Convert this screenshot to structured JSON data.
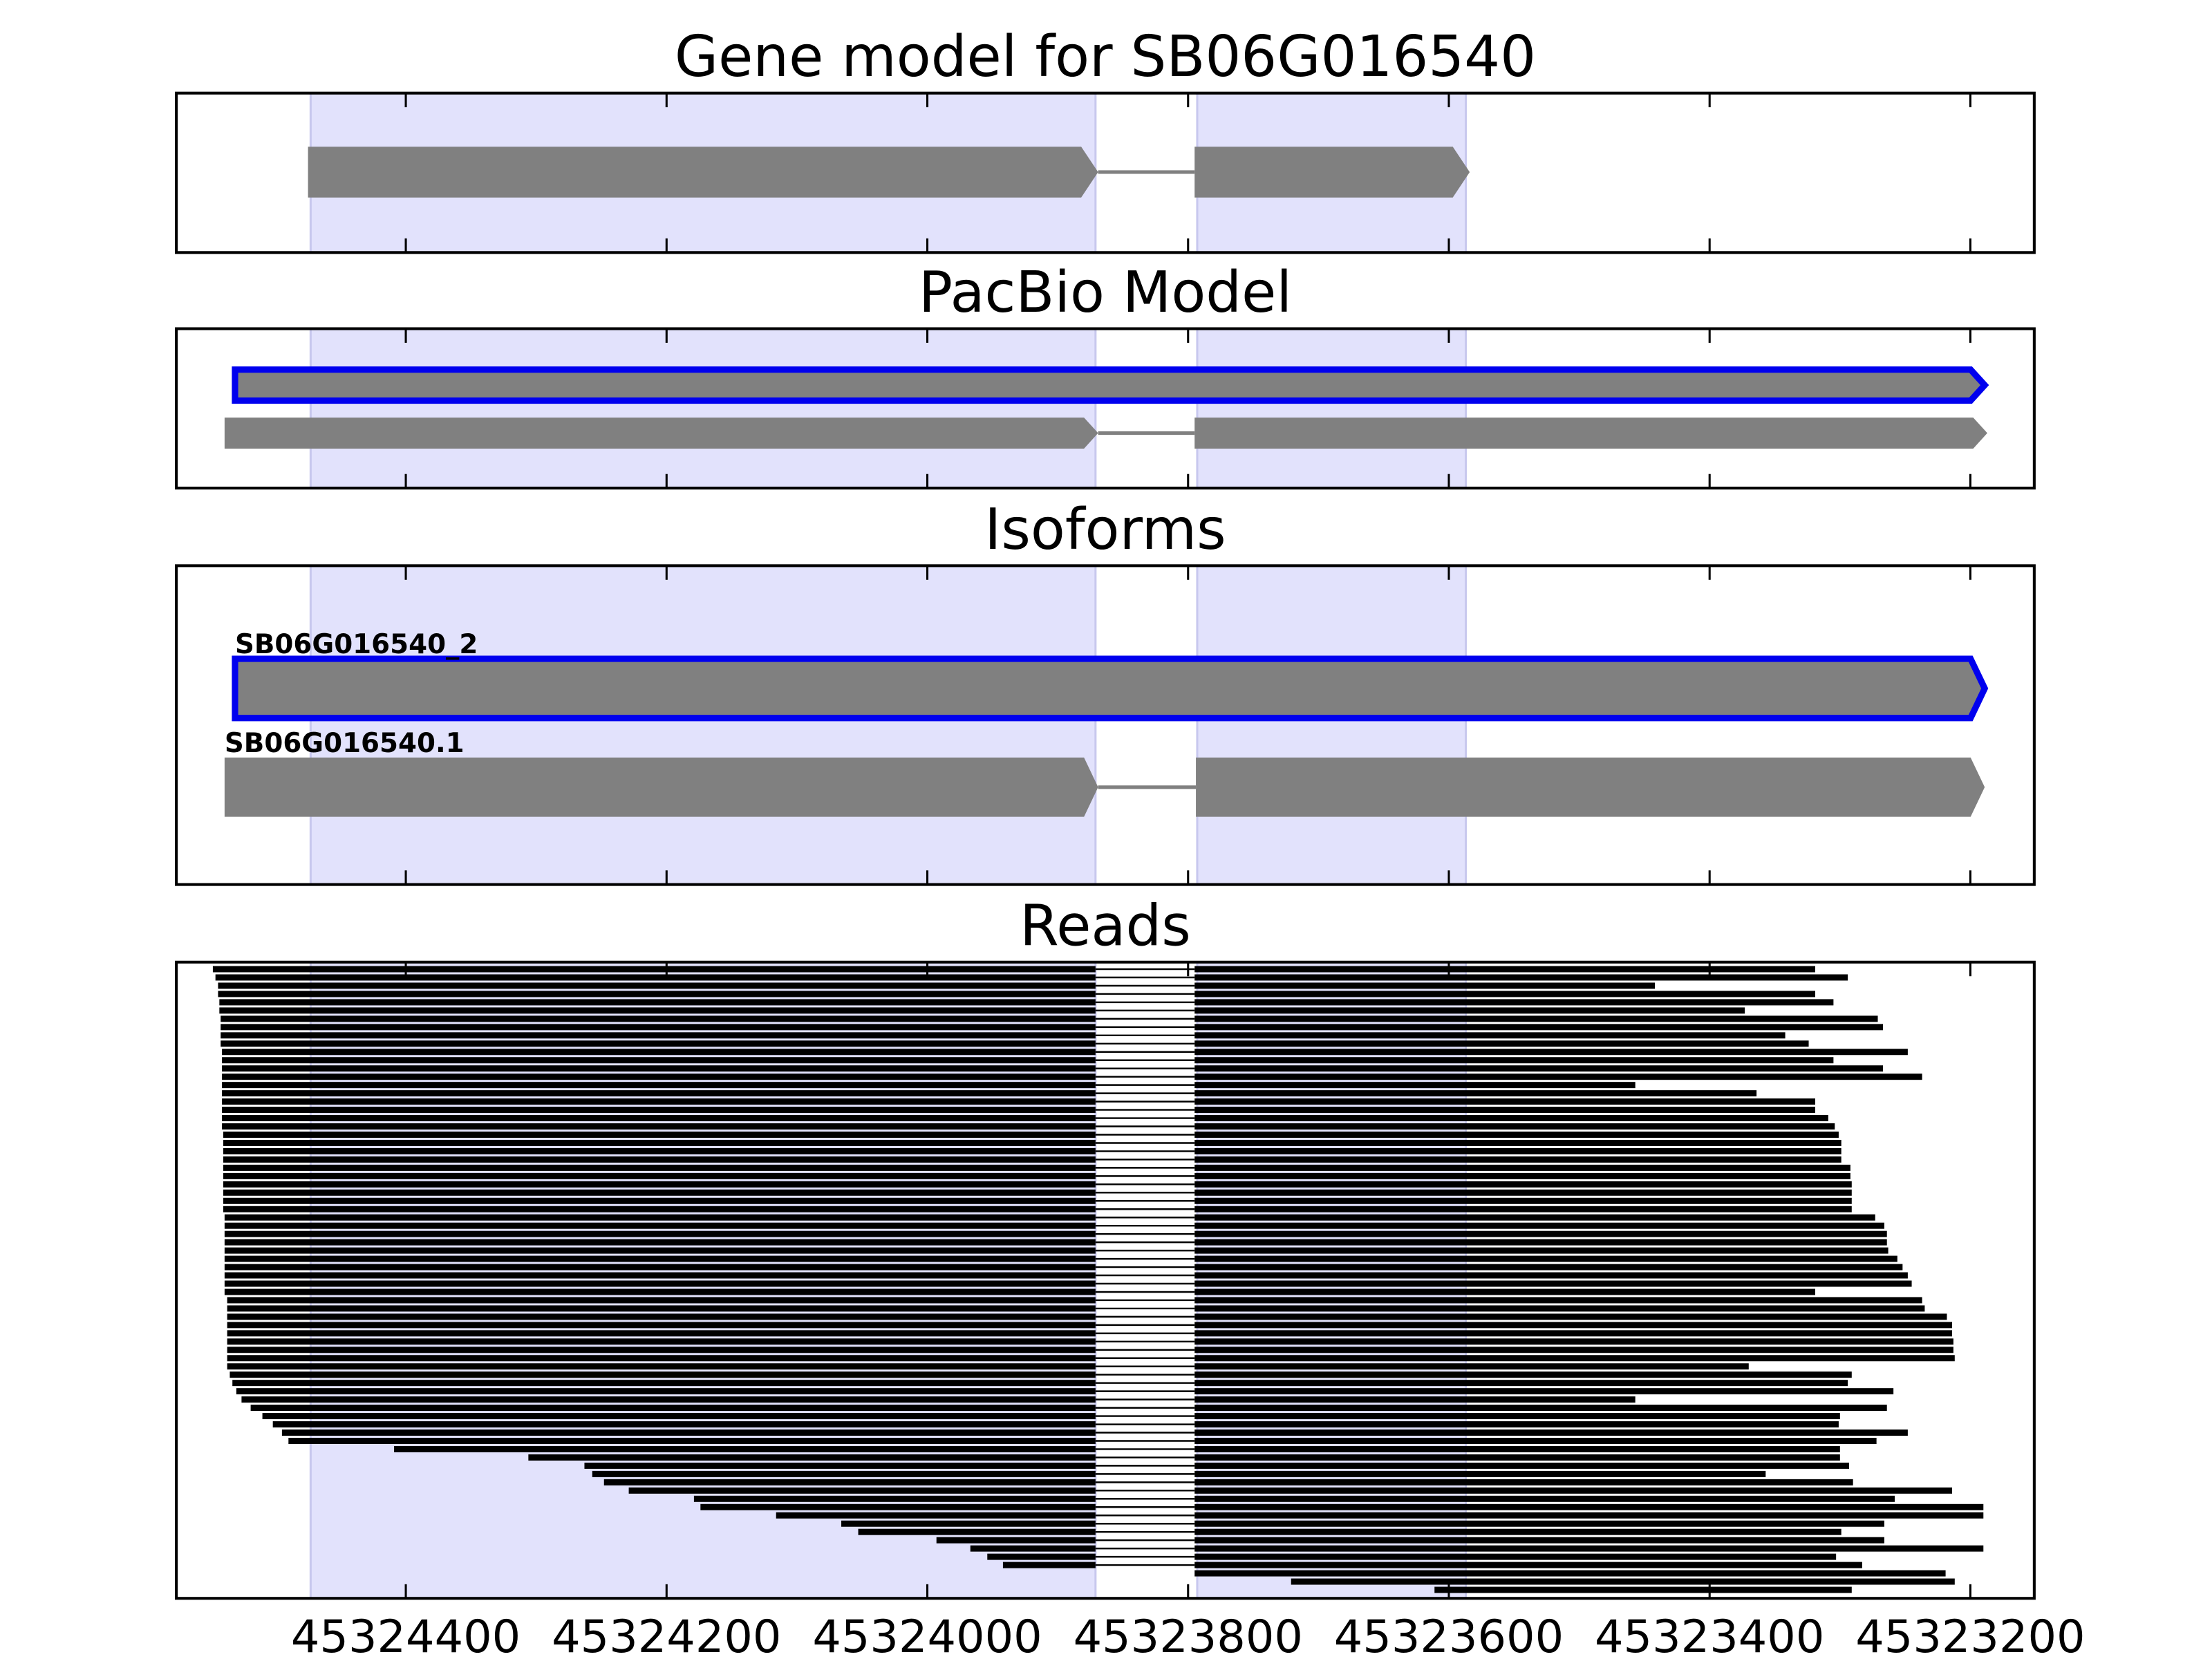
{
  "chart_data": {
    "type": "gene-track",
    "xlim": [
      45324576,
      45323151
    ],
    "xticks": [
      45324400,
      45324200,
      45324000,
      45323800,
      45323600,
      45323400,
      45323200
    ],
    "highlight": [
      [
        45324473,
        45323871
      ],
      [
        45323793,
        45323587
      ]
    ],
    "highlight_color": "#e2e2fc",
    "exon_color": "#808080",
    "outline_color": "#0000ee",
    "read_color": "#000000",
    "panels": [
      {
        "title": "Gene model for SB06G016540",
        "transcripts": [
          {
            "exons": [
              [
                45324475,
                45323869
              ],
              [
                45323795,
                45323584
              ]
            ]
          }
        ]
      },
      {
        "title": "PacBio Model",
        "transcripts": [
          {
            "exons": [
              [
                45324531,
                45323189
              ]
            ],
            "outline": true
          },
          {
            "exons": [
              [
                45324539,
                45323869
              ],
              [
                45323795,
                45323187
              ]
            ]
          }
        ]
      },
      {
        "title": "Isoforms",
        "transcripts": [
          {
            "name": "SB06G016540_2",
            "exons": [
              [
                45324531,
                45323189
              ]
            ],
            "outline": true
          },
          {
            "name": "SB06G016540.1",
            "exons": [
              [
                45324539,
                45323869
              ],
              [
                45323794,
                45323189
              ]
            ]
          }
        ]
      },
      {
        "title": "Reads",
        "reads": {
          "intron": [
            45323871,
            45323795
          ],
          "starts": [
            45324548,
            45324546,
            45324544,
            45324544,
            45324543,
            45324543,
            45324542,
            45324542,
            45324542,
            45324542,
            45324541,
            45324541,
            45324541,
            45324541,
            45324541,
            45324541,
            45324541,
            45324541,
            45324541,
            45324541,
            45324540,
            45324540,
            45324540,
            45324540,
            45324540,
            45324540,
            45324540,
            45324540,
            45324540,
            45324540,
            45324539,
            45324539,
            45324539,
            45324539,
            45324539,
            45324539,
            45324539,
            45324539,
            45324539,
            45324539,
            45324537,
            45324537,
            45324537,
            45324537,
            45324537,
            45324537,
            45324537,
            45324537,
            45324537,
            45324535,
            45324533,
            45324530,
            45324526,
            45324519,
            45324510,
            45324502,
            45324495,
            45324490,
            45324409,
            45324306,
            45324263,
            45324257,
            45324248,
            45324229,
            45324179,
            45324174,
            45324116,
            45324066,
            45324053,
            45323993,
            45323967,
            45323954,
            45323942,
            45323795,
            45323721,
            45323611
          ],
          "ends": [
            45323319,
            45323294,
            45323442,
            45323319,
            45323305,
            45323373,
            45323271,
            45323267,
            45323342,
            45323324,
            45323248,
            45323305,
            45323267,
            45323237,
            45323457,
            45323364,
            45323319,
            45323319,
            45323309,
            45323304,
            45323301,
            45323299,
            45323299,
            45323299,
            45323292,
            45323292,
            45323291,
            45323291,
            45323291,
            45323291,
            45323273,
            45323266,
            45323264,
            45323264,
            45323263,
            45323256,
            45323252,
            45323248,
            45323245,
            45323319,
            45323237,
            45323235,
            45323218,
            45323214,
            45323214,
            45323213,
            45323213,
            45323212,
            45323370,
            45323291,
            45323294,
            45323259,
            45323457,
            45323264,
            45323300,
            45323301,
            45323248,
            45323272,
            45323300,
            45323300,
            45323293,
            45323357,
            45323290,
            45323214,
            45323258,
            45323190,
            45323190,
            45323266,
            45323299,
            45323266,
            45323190,
            45323303,
            45323283,
            45323219,
            45323212,
            45323291
          ]
        }
      }
    ]
  }
}
